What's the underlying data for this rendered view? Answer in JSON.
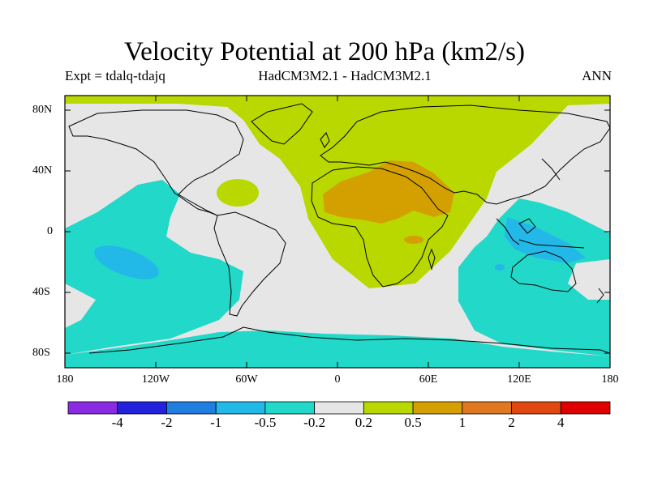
{
  "title": "Velocity Potential at 200 hPa (km2/s)",
  "subtitle_left": "Expt = tdalq-tdajq",
  "subtitle_center": "HadCM3M2.1 - HadCM3M2.1",
  "subtitle_right": "ANN",
  "lat_labels": [
    "80N",
    "40N",
    "0",
    "40S",
    "80S"
  ],
  "lon_labels": [
    "180",
    "120W",
    "60W",
    "0",
    "60E",
    "120E",
    "180"
  ],
  "colorbar": {
    "colors": [
      "#8a2be2",
      "#2222dd",
      "#1f7ee0",
      "#22b8e8",
      "#22d8c8",
      "#e6e6e6",
      "#b8d800",
      "#d4a000",
      "#e07820",
      "#e04810",
      "#e00000"
    ],
    "labels": [
      "-4",
      "-2",
      "-1",
      "-0.5",
      "-0.2",
      "0.2",
      "0.5",
      "1",
      "2",
      "4"
    ]
  },
  "map": {
    "background_level": "#e6e6e6",
    "field_colors": {
      "positive_low": "#b8d800",
      "positive_mid": "#d4a000",
      "negative_low": "#22d8c8",
      "negative_mid": "#22b8e8"
    }
  }
}
